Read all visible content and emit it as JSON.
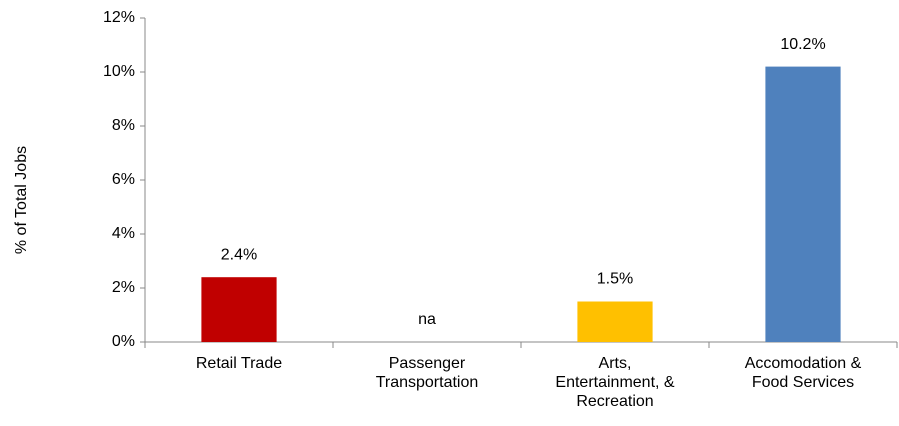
{
  "chart_data": {
    "type": "bar",
    "y_label": "% of Total Jobs",
    "categories": [
      "Retail Trade",
      "Passenger Transportation",
      "Arts, Entertainment, & Recreation",
      "Accomodation & Food Services"
    ],
    "values": [
      2.4,
      null,
      1.5,
      10.2
    ],
    "value_labels": [
      "2.4%",
      "na",
      "1.5%",
      "10.2%"
    ],
    "colors": [
      "#c00000",
      "#c00000",
      "#ffc000",
      "#4f81bd"
    ],
    "ylim": [
      0,
      12
    ],
    "yticks": [
      {
        "value": 0,
        "label": "0%"
      },
      {
        "value": 2,
        "label": "2%"
      },
      {
        "value": 4,
        "label": "4%"
      },
      {
        "value": 6,
        "label": "6%"
      },
      {
        "value": 8,
        "label": "8%"
      },
      {
        "value": 10,
        "label": "10%"
      },
      {
        "value": 12,
        "label": "12%"
      }
    ],
    "grid": false
  }
}
